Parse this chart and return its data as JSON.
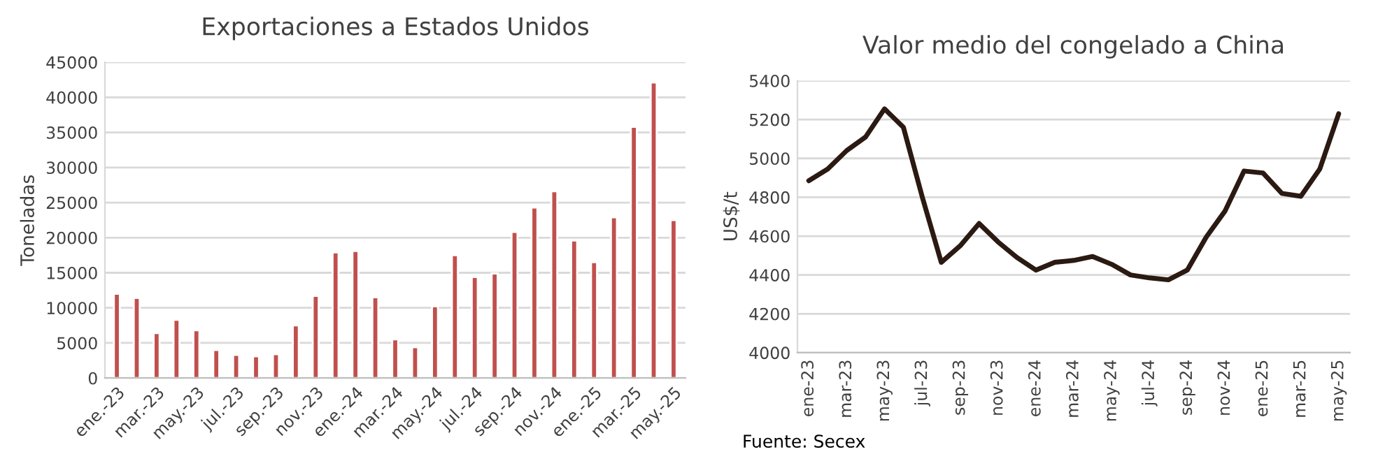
{
  "chart_data": [
    {
      "type": "bar",
      "title": "Exportaciones a Estados Unidos",
      "ylabel": "Toneladas",
      "categories": [
        "ene.-23",
        null,
        "mar.-23",
        null,
        "may.-23",
        null,
        "jul.-23",
        null,
        "sep.-23",
        null,
        "nov.-23",
        null,
        "ene.-24",
        null,
        "mar.-24",
        null,
        "may.-24",
        null,
        "jul.-24",
        null,
        "sep.-24",
        null,
        "nov.-24",
        null,
        "ene.-25",
        null,
        "mar.-25",
        null,
        "may.-25"
      ],
      "series": [
        {
          "color": "#c0504d",
          "values": [
            12000,
            11400,
            6400,
            8300,
            6800,
            4000,
            3300,
            3100,
            3400,
            7500,
            11700,
            17900,
            18100,
            11500,
            5500,
            4400,
            10200,
            17500,
            14400,
            14900,
            20800,
            24300,
            26600,
            19600,
            16500,
            22900,
            35800,
            42100,
            22500
          ]
        }
      ],
      "ylim": [
        0,
        45000
      ],
      "yticks": [
        0,
        5000,
        10000,
        15000,
        20000,
        25000,
        30000,
        35000,
        40000,
        45000
      ],
      "grid": "y"
    },
    {
      "type": "line",
      "title": "Valor medio del congelado a China",
      "ylabel": "US$/t",
      "categories": [
        "ene-23",
        null,
        "mar-23",
        null,
        "may-23",
        null,
        "jul-23",
        null,
        "sep-23",
        null,
        "nov-23",
        null,
        "ene-24",
        null,
        "mar-24",
        null,
        "may-24",
        null,
        "jul-24",
        null,
        "sep-24",
        null,
        "nov-24",
        null,
        "ene-25",
        null,
        "mar-25",
        null,
        "may-25"
      ],
      "series": [
        {
          "color": "#2b1a12",
          "values": [
            4885,
            4945,
            5040,
            5110,
            5255,
            5160,
            4800,
            4465,
            4550,
            4665,
            4570,
            4490,
            4425,
            4465,
            4475,
            4495,
            4455,
            4400,
            4385,
            4375,
            4425,
            4595,
            4730,
            4935,
            4925,
            4820,
            4805,
            4945,
            5230
          ]
        }
      ],
      "ylim": [
        4000,
        5400
      ],
      "yticks": [
        4000,
        4200,
        4400,
        4600,
        4800,
        5000,
        5200,
        5400
      ],
      "grid": "y",
      "annotations": [
        "Fuente: Secex"
      ]
    }
  ]
}
